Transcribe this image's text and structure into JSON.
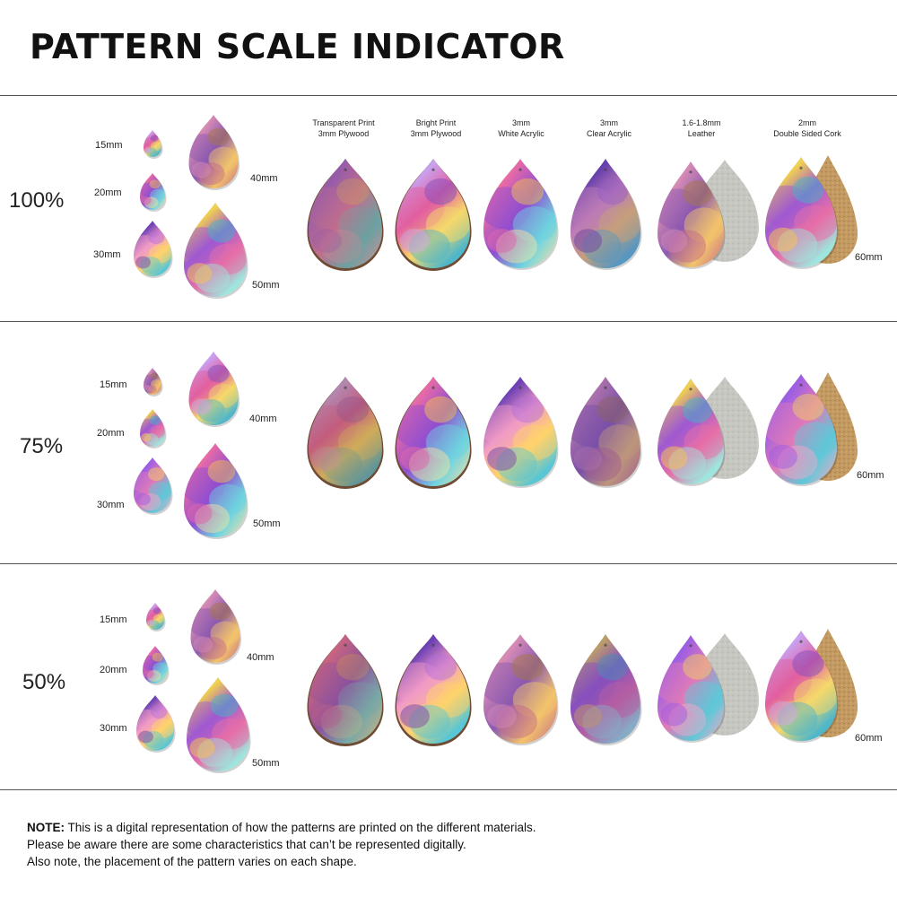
{
  "title": "PATTERN SCALE INDICATOR",
  "materials": [
    {
      "line1": "Transparent Print",
      "line2": "3mm Plywood"
    },
    {
      "line1": "Bright Print",
      "line2": "3mm Plywood"
    },
    {
      "line1": "3mm",
      "line2": "White Acrylic"
    },
    {
      "line1": "3mm",
      "line2": "Clear Acrylic"
    },
    {
      "line1": "1.6-1.8mm",
      "line2": "Leather"
    },
    {
      "line1": "2mm",
      "line2": "Double Sided Cork"
    }
  ],
  "sections": [
    {
      "scale": "100%",
      "sizes": [
        "15mm",
        "20mm",
        "30mm",
        "40mm",
        "50mm",
        "60mm"
      ]
    },
    {
      "scale": "75%",
      "sizes": [
        "15mm",
        "20mm",
        "30mm",
        "40mm",
        "50mm",
        "60mm"
      ]
    },
    {
      "scale": "50%",
      "sizes": [
        "15mm",
        "20mm",
        "30mm",
        "40mm",
        "50mm",
        "60mm"
      ]
    }
  ],
  "note": {
    "label": "NOTE:",
    "line1": " This is a digital representation of how the patterns are printed on the different materials.",
    "line2": "Please be aware there are some characteristics that can’t be represented digitally.",
    "line3": "Also note, the placement of the pattern varies on each shape."
  }
}
